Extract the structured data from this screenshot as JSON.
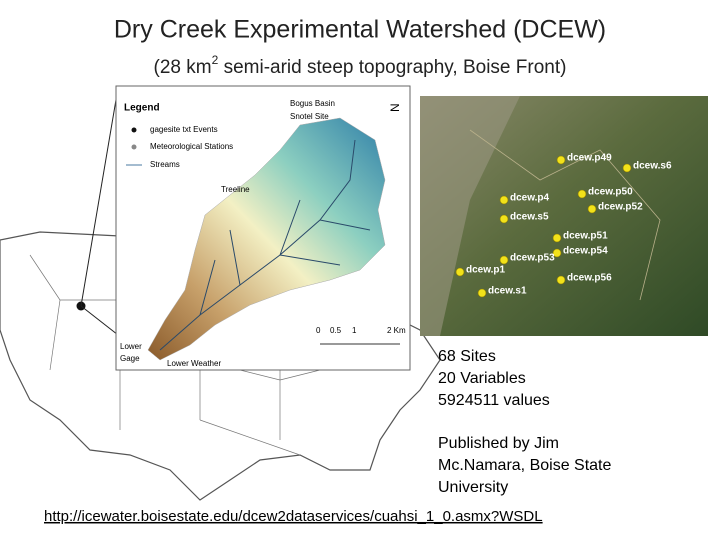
{
  "title": "Dry Creek Experimental Watershed (DCEW)",
  "subtitle": {
    "before": "(28 km",
    "sup": "2",
    "after": " semi-arid steep topography, Boise Front)"
  },
  "map": {
    "legend_title": "Legend",
    "legend_items": [
      "gagesite txt Events",
      "Meteorological Stations",
      "Streams"
    ],
    "labels": [
      "Bogus Basin",
      "Snotel Site",
      "Treeline",
      "Lower",
      "Gage",
      "Lower Weather"
    ],
    "scale": [
      "0",
      "0.5",
      "1",
      "2 Km"
    ],
    "north": "N"
  },
  "satellite": {
    "sites": [
      "dcew.p49",
      "dcew.s6",
      "dcew.p50",
      "dcew.p4",
      "dcew.p52",
      "dcew.s5",
      "dcew.p51",
      "dcew.p54",
      "dcew.p53",
      "dcew.p1",
      "dcew.p56",
      "dcew.s1"
    ]
  },
  "stats": [
    "68 Sites",
    "20 Variables",
    "5924511 values"
  ],
  "credit": [
    "Published by Jim",
    "Mc.Namara, Boise State",
    "University"
  ],
  "link": "http://icewater.boisestate.edu/dcew2dataservices/cuahsi_1_0.asmx?WSDL"
}
